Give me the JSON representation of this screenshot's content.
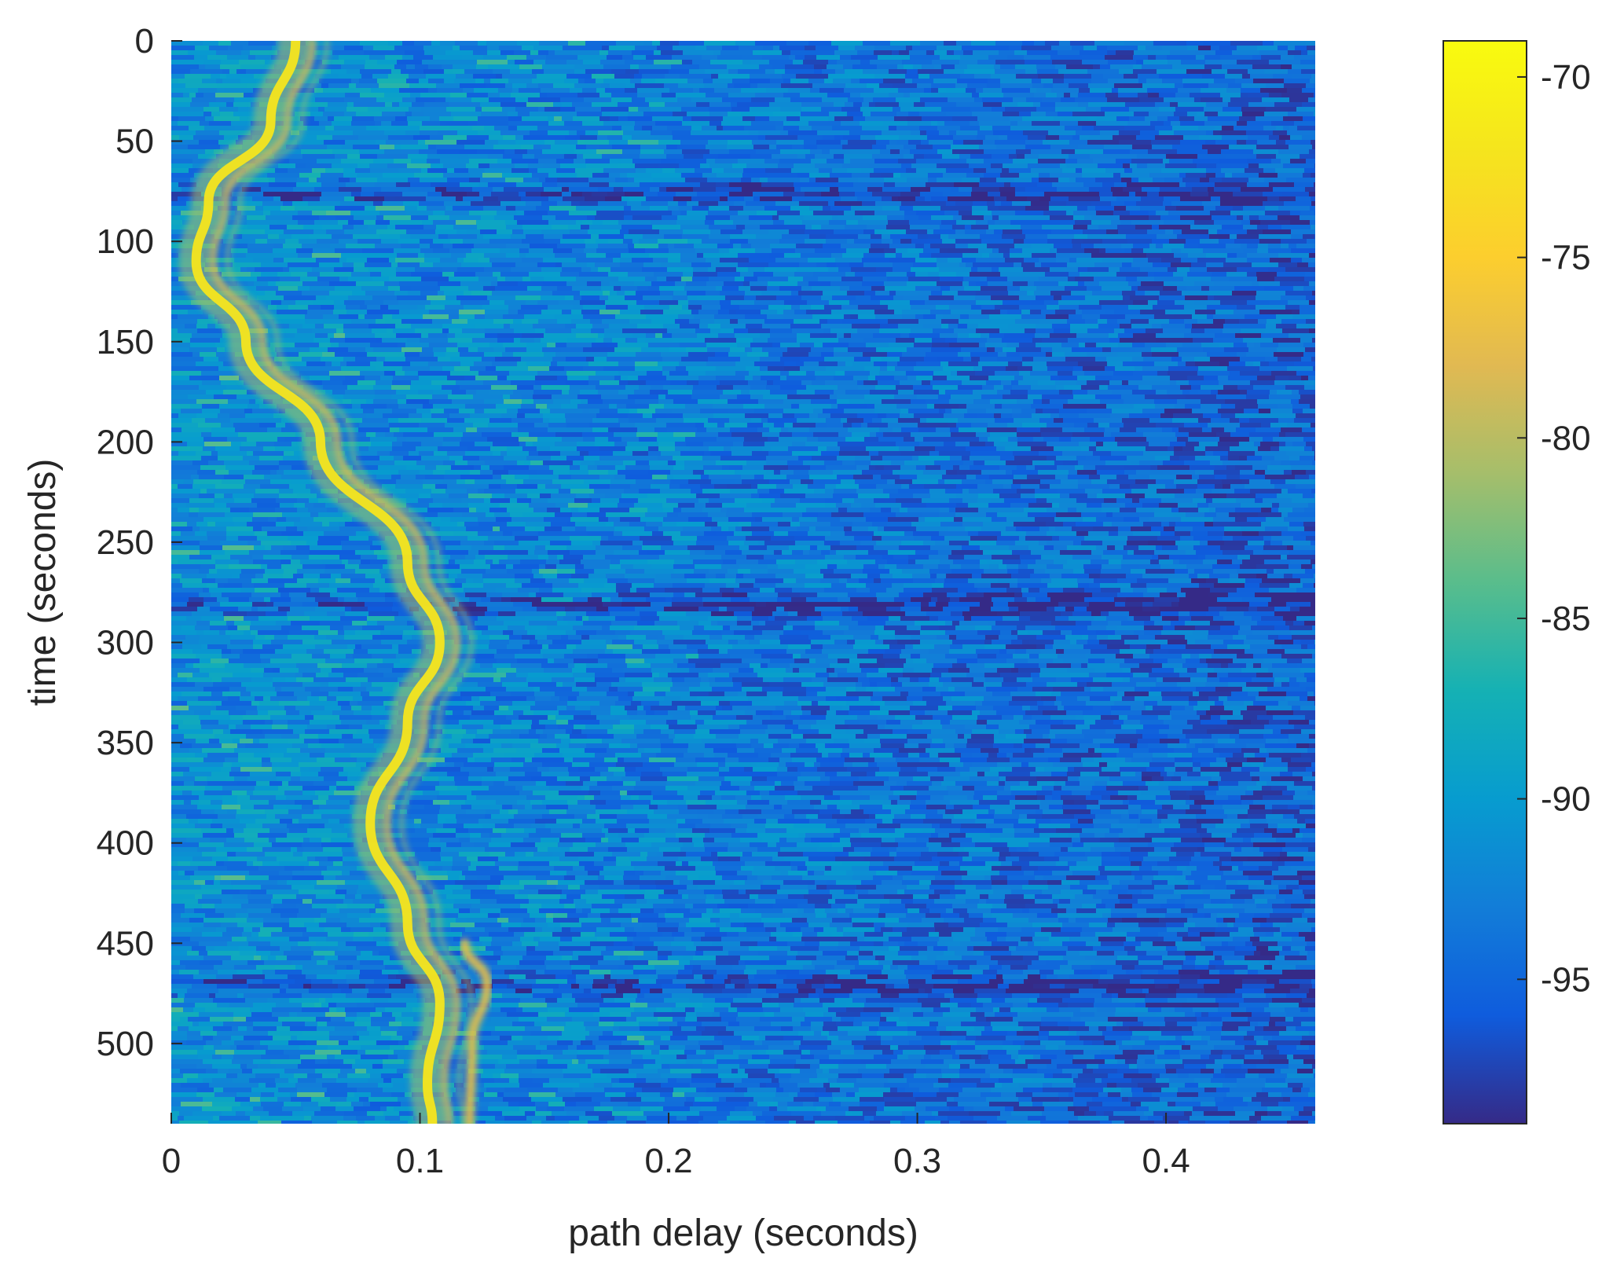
{
  "chart_data": {
    "type": "heatmap",
    "title": "",
    "xlabel": "path delay (seconds)",
    "ylabel": "time (seconds)",
    "xlim": [
      0,
      0.46
    ],
    "ylim": [
      0,
      540
    ],
    "y_reversed": true,
    "xticks": [
      {
        "value": 0,
        "label": "0"
      },
      {
        "value": 0.1,
        "label": "0.1"
      },
      {
        "value": 0.2,
        "label": "0.2"
      },
      {
        "value": 0.3,
        "label": "0.3"
      },
      {
        "value": 0.4,
        "label": "0.4"
      }
    ],
    "yticks": [
      {
        "value": 0,
        "label": "0"
      },
      {
        "value": 50,
        "label": "50"
      },
      {
        "value": 100,
        "label": "100"
      },
      {
        "value": 150,
        "label": "150"
      },
      {
        "value": 200,
        "label": "200"
      },
      {
        "value": 250,
        "label": "250"
      },
      {
        "value": 300,
        "label": "300"
      },
      {
        "value": 350,
        "label": "350"
      },
      {
        "value": 400,
        "label": "400"
      },
      {
        "value": 450,
        "label": "450"
      },
      {
        "value": 500,
        "label": "500"
      }
    ],
    "colorbar": {
      "colormap": "parula",
      "range": [
        -99,
        -69
      ],
      "ticks": [
        {
          "value": -70,
          "label": "-70"
        },
        {
          "value": -75,
          "label": "-75"
        },
        {
          "value": -80,
          "label": "-80"
        },
        {
          "value": -85,
          "label": "-85"
        },
        {
          "value": -90,
          "label": "-90"
        },
        {
          "value": -95,
          "label": "-95"
        }
      ]
    },
    "background_level_db": -91,
    "primary_arrival_track": [
      {
        "time": 0,
        "delay": 0.05
      },
      {
        "time": 40,
        "delay": 0.04
      },
      {
        "time": 80,
        "delay": 0.015
      },
      {
        "time": 110,
        "delay": 0.01
      },
      {
        "time": 150,
        "delay": 0.03
      },
      {
        "time": 200,
        "delay": 0.06
      },
      {
        "time": 260,
        "delay": 0.095
      },
      {
        "time": 300,
        "delay": 0.108
      },
      {
        "time": 340,
        "delay": 0.095
      },
      {
        "time": 390,
        "delay": 0.08
      },
      {
        "time": 440,
        "delay": 0.095
      },
      {
        "time": 480,
        "delay": 0.108
      },
      {
        "time": 520,
        "delay": 0.103
      },
      {
        "time": 540,
        "delay": 0.105
      }
    ],
    "peak_level_db": -69,
    "secondary_arrival_track": [
      {
        "time": 450,
        "delay": 0.118
      },
      {
        "time": 470,
        "delay": 0.127
      },
      {
        "time": 500,
        "delay": 0.121
      },
      {
        "time": 540,
        "delay": 0.12
      }
    ],
    "dark_bands_time": [
      75,
      280,
      470
    ]
  }
}
